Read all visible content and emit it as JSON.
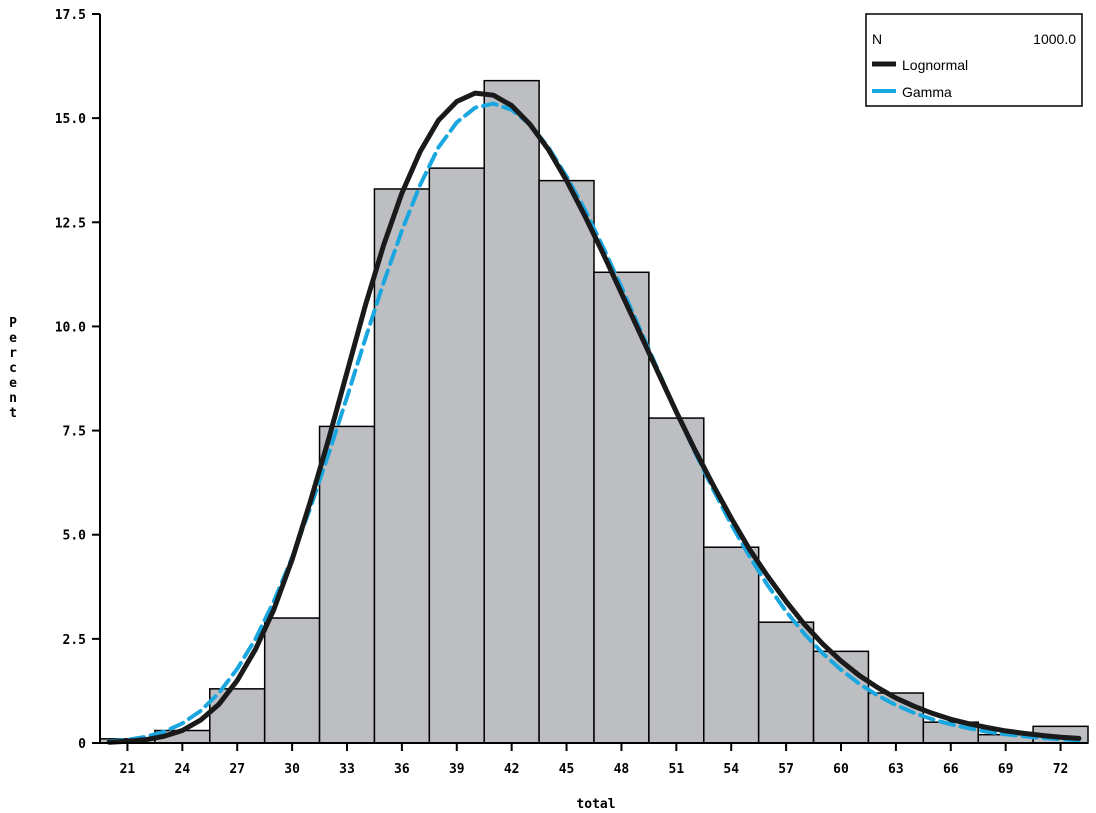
{
  "chart_data": {
    "type": "bar",
    "xlabel": "total",
    "ylabel": "Percent",
    "ylim": [
      0,
      17.5
    ],
    "xlim": [
      19.5,
      73.5
    ],
    "y_ticks": [
      "0",
      "2.5",
      "5.0",
      "7.5",
      "10.0",
      "12.5",
      "15.0",
      "17.5"
    ],
    "x_ticks": [
      "21",
      "24",
      "27",
      "30",
      "33",
      "36",
      "39",
      "42",
      "45",
      "48",
      "51",
      "54",
      "57",
      "60",
      "63",
      "66",
      "69",
      "72"
    ],
    "bin_width": 3,
    "categories": [
      "21",
      "24",
      "27",
      "30",
      "33",
      "36",
      "39",
      "42",
      "45",
      "48",
      "51",
      "54",
      "57",
      "60",
      "63",
      "66",
      "69",
      "72"
    ],
    "values": [
      0.1,
      0.3,
      1.3,
      3.0,
      7.6,
      13.3,
      13.8,
      15.9,
      13.5,
      11.3,
      7.8,
      4.7,
      2.9,
      2.2,
      1.2,
      0.5,
      0.2,
      0.4
    ],
    "series": [
      {
        "name": "Lognormal",
        "color": "#1a1a1a",
        "style": "solid",
        "x": [
          20,
          21,
          22,
          23,
          24,
          25,
          26,
          27,
          28,
          29,
          30,
          31,
          32,
          33,
          34,
          35,
          36,
          37,
          38,
          39,
          40,
          41,
          42,
          43,
          44,
          45,
          46,
          47,
          48,
          49,
          50,
          51,
          52,
          53,
          54,
          55,
          56,
          57,
          58,
          59,
          60,
          61,
          62,
          63,
          64,
          65,
          66,
          67,
          68,
          69,
          70,
          71,
          72,
          73
        ],
        "y": [
          0.02,
          0.04,
          0.08,
          0.16,
          0.3,
          0.55,
          0.93,
          1.5,
          2.25,
          3.2,
          4.4,
          5.8,
          7.3,
          8.9,
          10.5,
          11.95,
          13.2,
          14.2,
          14.95,
          15.4,
          15.6,
          15.55,
          15.3,
          14.85,
          14.25,
          13.5,
          12.65,
          11.75,
          10.8,
          9.85,
          8.9,
          7.95,
          7.05,
          6.2,
          5.4,
          4.65,
          4.0,
          3.4,
          2.85,
          2.38,
          1.97,
          1.62,
          1.33,
          1.08,
          0.88,
          0.71,
          0.57,
          0.46,
          0.37,
          0.29,
          0.23,
          0.18,
          0.14,
          0.11
        ]
      },
      {
        "name": "Gamma",
        "color": "#1aa7e0",
        "style": "dashed",
        "x": [
          20,
          21,
          22,
          23,
          24,
          25,
          26,
          27,
          28,
          29,
          30,
          31,
          32,
          33,
          34,
          35,
          36,
          37,
          38,
          39,
          40,
          41,
          42,
          43,
          44,
          45,
          46,
          47,
          48,
          49,
          50,
          51,
          52,
          53,
          54,
          55,
          56,
          57,
          58,
          59,
          60,
          61,
          62,
          63,
          64,
          65,
          66,
          67,
          68,
          69,
          70,
          71,
          72,
          73
        ],
        "y": [
          0.04,
          0.08,
          0.15,
          0.27,
          0.47,
          0.77,
          1.2,
          1.78,
          2.5,
          3.4,
          4.45,
          5.65,
          6.95,
          8.3,
          9.7,
          11.05,
          12.3,
          13.4,
          14.3,
          14.9,
          15.25,
          15.35,
          15.2,
          14.85,
          14.3,
          13.6,
          12.8,
          11.9,
          10.95,
          9.95,
          8.95,
          7.95,
          7.0,
          6.1,
          5.25,
          4.48,
          3.78,
          3.16,
          2.62,
          2.15,
          1.76,
          1.42,
          1.14,
          0.91,
          0.72,
          0.57,
          0.45,
          0.35,
          0.27,
          0.21,
          0.16,
          0.12,
          0.09,
          0.07
        ]
      }
    ],
    "legend": {
      "n_label": "N",
      "n_value": "1000.0",
      "entries": [
        "Lognormal",
        "Gamma"
      ],
      "placement": "top-right"
    },
    "bar_color": "#bdbec2",
    "grid": false
  }
}
